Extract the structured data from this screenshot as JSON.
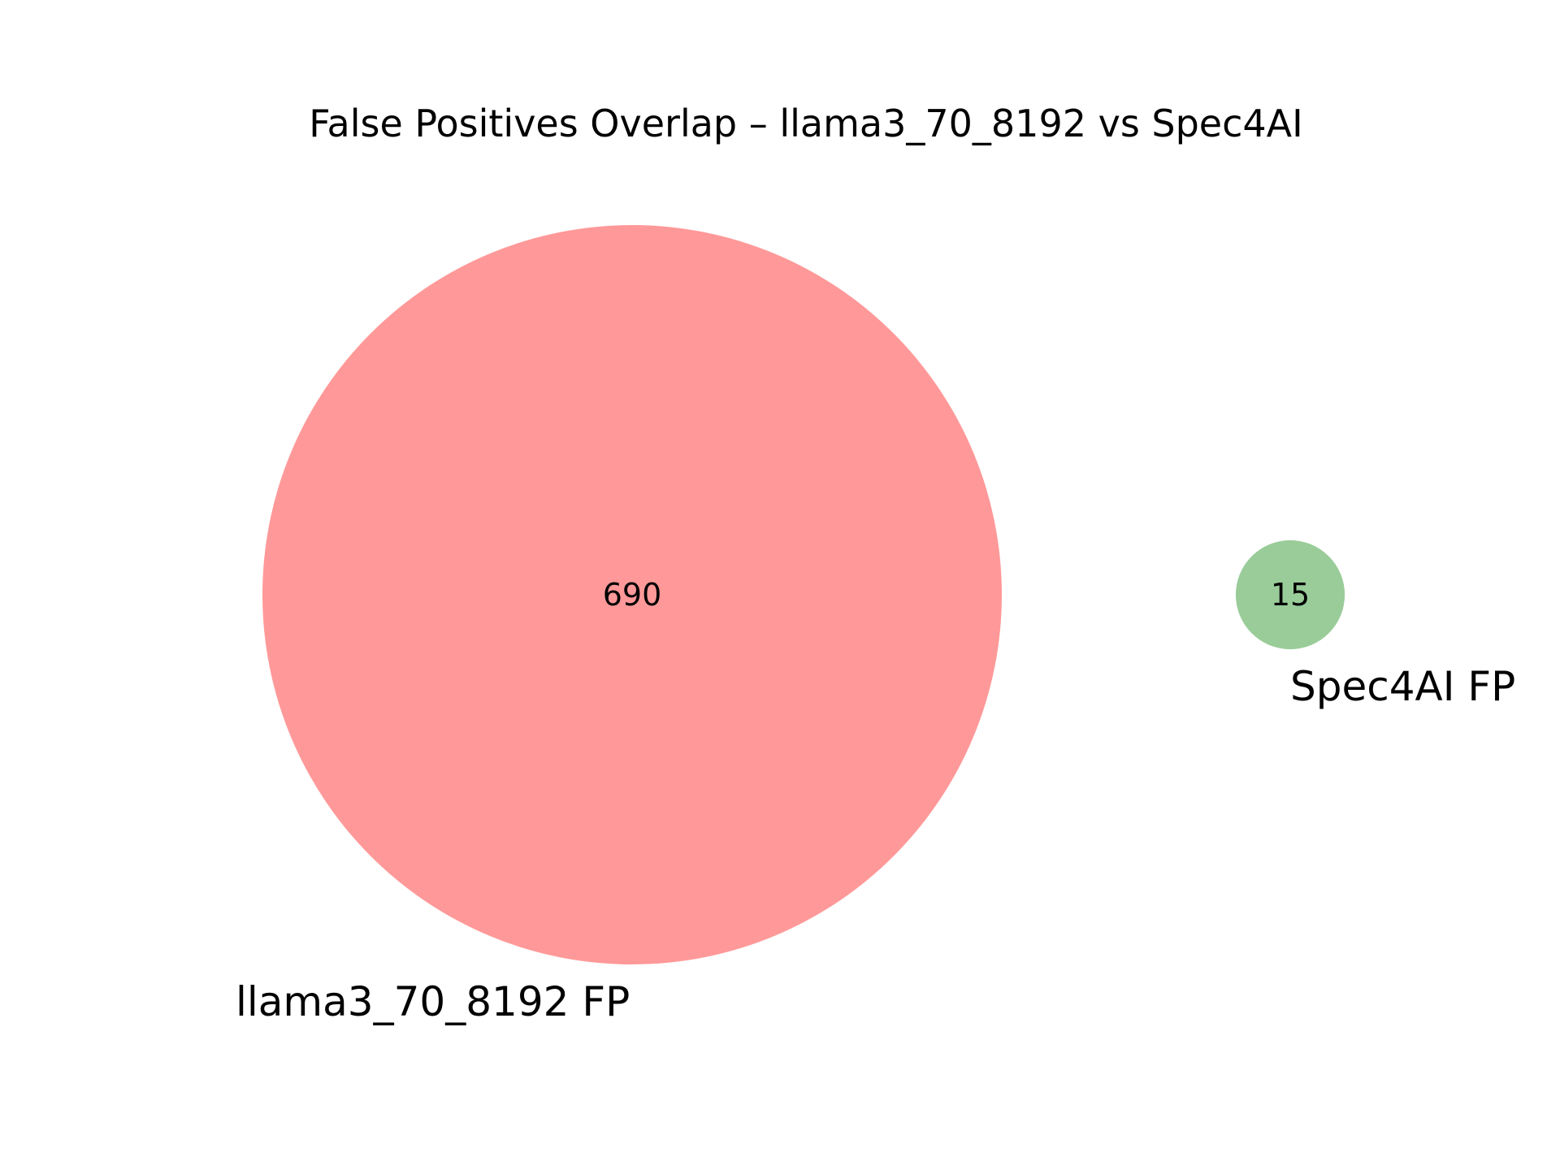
{
  "chart_data": {
    "type": "venn",
    "title": "False Positives Overlap – llama3_70_8192 vs Spec4AI",
    "sets": [
      {
        "name": "llama3_70_8192 FP",
        "only": 690,
        "color": "#ff9999"
      },
      {
        "name": "Spec4AI FP",
        "only": 15,
        "color": "#99cc99"
      }
    ],
    "intersection": 0
  }
}
